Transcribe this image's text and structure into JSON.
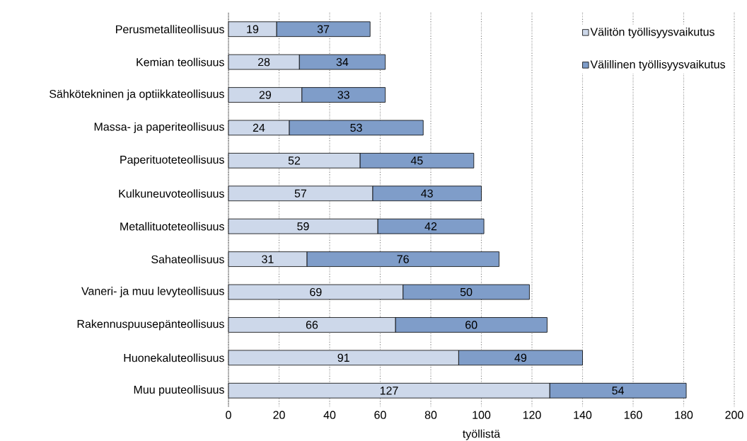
{
  "chart_data": {
    "type": "bar",
    "orientation": "horizontal",
    "stacked": true,
    "xlabel": "työllistä",
    "categories": [
      "Perusmetalliteollisuus",
      "Kemian teollisuus",
      "Sähkötekninen ja optiikkateollisuus",
      "Massa- ja paperiteollisuus",
      "Paperituoteteollisuus",
      "Kulkuneuvoteollisuus",
      "Metallituoteteollisuus",
      "Sahateollisuus",
      "Vaneri- ja muu levyteollisuus",
      "Rakennuspuusepänteollisuus",
      "Huonekaluteollisuus",
      "Muu puuteollisuus"
    ],
    "series": [
      {
        "name": "Välitön työllisyysvaikutus",
        "color": "#cdd8ea",
        "values": [
          19,
          28,
          29,
          24,
          52,
          57,
          59,
          31,
          69,
          66,
          91,
          127
        ]
      },
      {
        "name": "Välillinen työllisyysvaikutus",
        "color": "#7f9dc9",
        "values": [
          37,
          34,
          33,
          53,
          45,
          43,
          42,
          76,
          50,
          60,
          49,
          54
        ]
      }
    ],
    "xlim": [
      0,
      200
    ],
    "xticks": [
      0,
      20,
      40,
      60,
      80,
      100,
      120,
      140,
      160,
      180,
      200
    ],
    "grid": "x",
    "legend": "top right",
    "data_labels": true
  }
}
